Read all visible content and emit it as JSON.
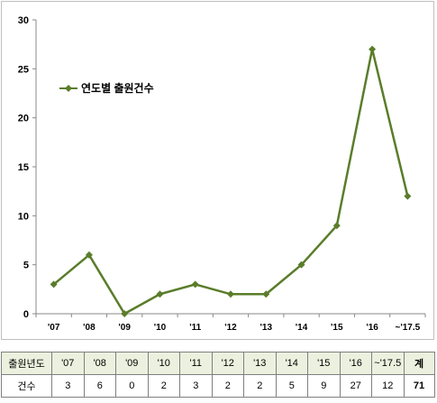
{
  "chart_data": {
    "type": "line",
    "categories": [
      "'07",
      "'08",
      "'09",
      "'10",
      "'11",
      "'12",
      "'13",
      "'14",
      "'15",
      "'16",
      "~'17.5"
    ],
    "series": [
      {
        "name": "연도별 출원건수",
        "values": [
          3,
          6,
          0,
          2,
          3,
          2,
          2,
          5,
          9,
          27,
          12
        ]
      }
    ],
    "ylim": [
      0,
      30
    ],
    "yticks": [
      0,
      5,
      10,
      15,
      20,
      25,
      30
    ],
    "legend_position": "top-left",
    "grid": false,
    "line_color": "#5a7d2a",
    "marker": "diamond"
  },
  "table": {
    "header_label": "출원년도",
    "count_label": "건수",
    "years": [
      "'07",
      "'08",
      "'09",
      "'10",
      "'11",
      "'12",
      "'13",
      "'14",
      "'15",
      "'16",
      "~'17.5"
    ],
    "counts": [
      "3",
      "6",
      "0",
      "2",
      "3",
      "2",
      "2",
      "5",
      "9",
      "27",
      "12"
    ],
    "total_label": "계",
    "total_value": "71",
    "header_bg": "#ebf1de"
  }
}
